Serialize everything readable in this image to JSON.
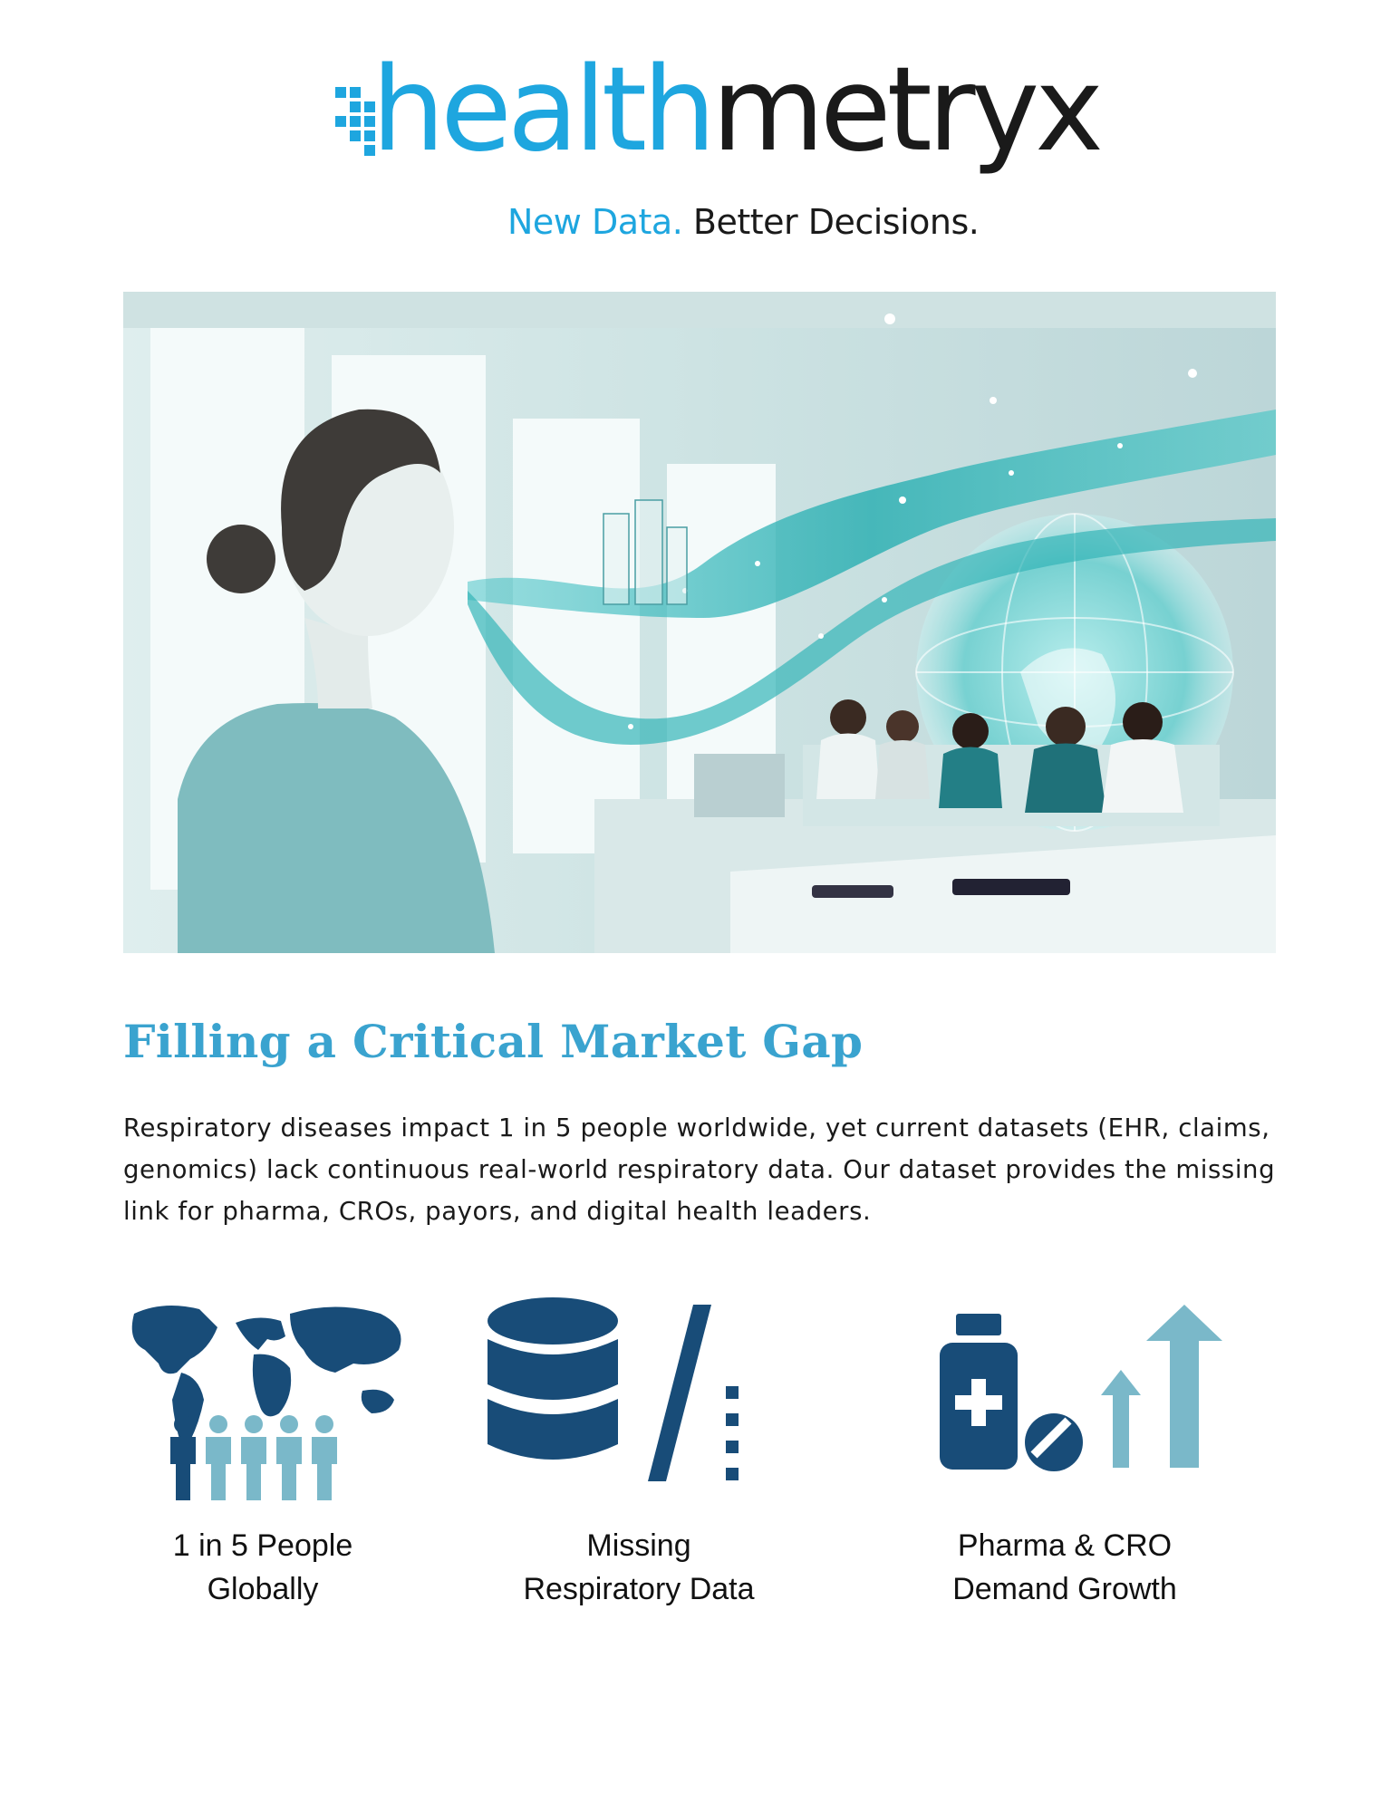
{
  "logo": {
    "word_a": "health",
    "word_b": "metryx",
    "tagline_a": "New Data.",
    "tagline_b": "Better Decisions.",
    "brand_color": "#1ea6df",
    "dark_color": "#1a1a1a",
    "mark_icon": "pixel-grid-icon"
  },
  "hero": {
    "image_icon": "woman-breathing-data-stream-illustration",
    "accent_color": "#3fc1c4"
  },
  "section": {
    "title": "Filling a Critical Market Gap",
    "title_color": "#3aa3cf",
    "body": "Respiratory diseases impact 1 in 5 people worldwide, yet current datasets (EHR, claims, genomics) lack continuous real-world respiratory data. Our dataset provides the missing link for pharma, CROs, payors, and digital health leaders."
  },
  "features": [
    {
      "icon": "world-map-people-icon",
      "label_line1": "1 in 5 People",
      "label_line2": "Globally"
    },
    {
      "icon": "database-slash-icon",
      "label_line1": "Missing",
      "label_line2": "Respiratory Data"
    },
    {
      "icon": "medicine-growth-arrows-icon",
      "label_line1": "Pharma & CRO",
      "label_line2": "Demand Growth"
    }
  ],
  "icon_colors": {
    "dark": "#184c78",
    "light": "#7ab8c9"
  }
}
